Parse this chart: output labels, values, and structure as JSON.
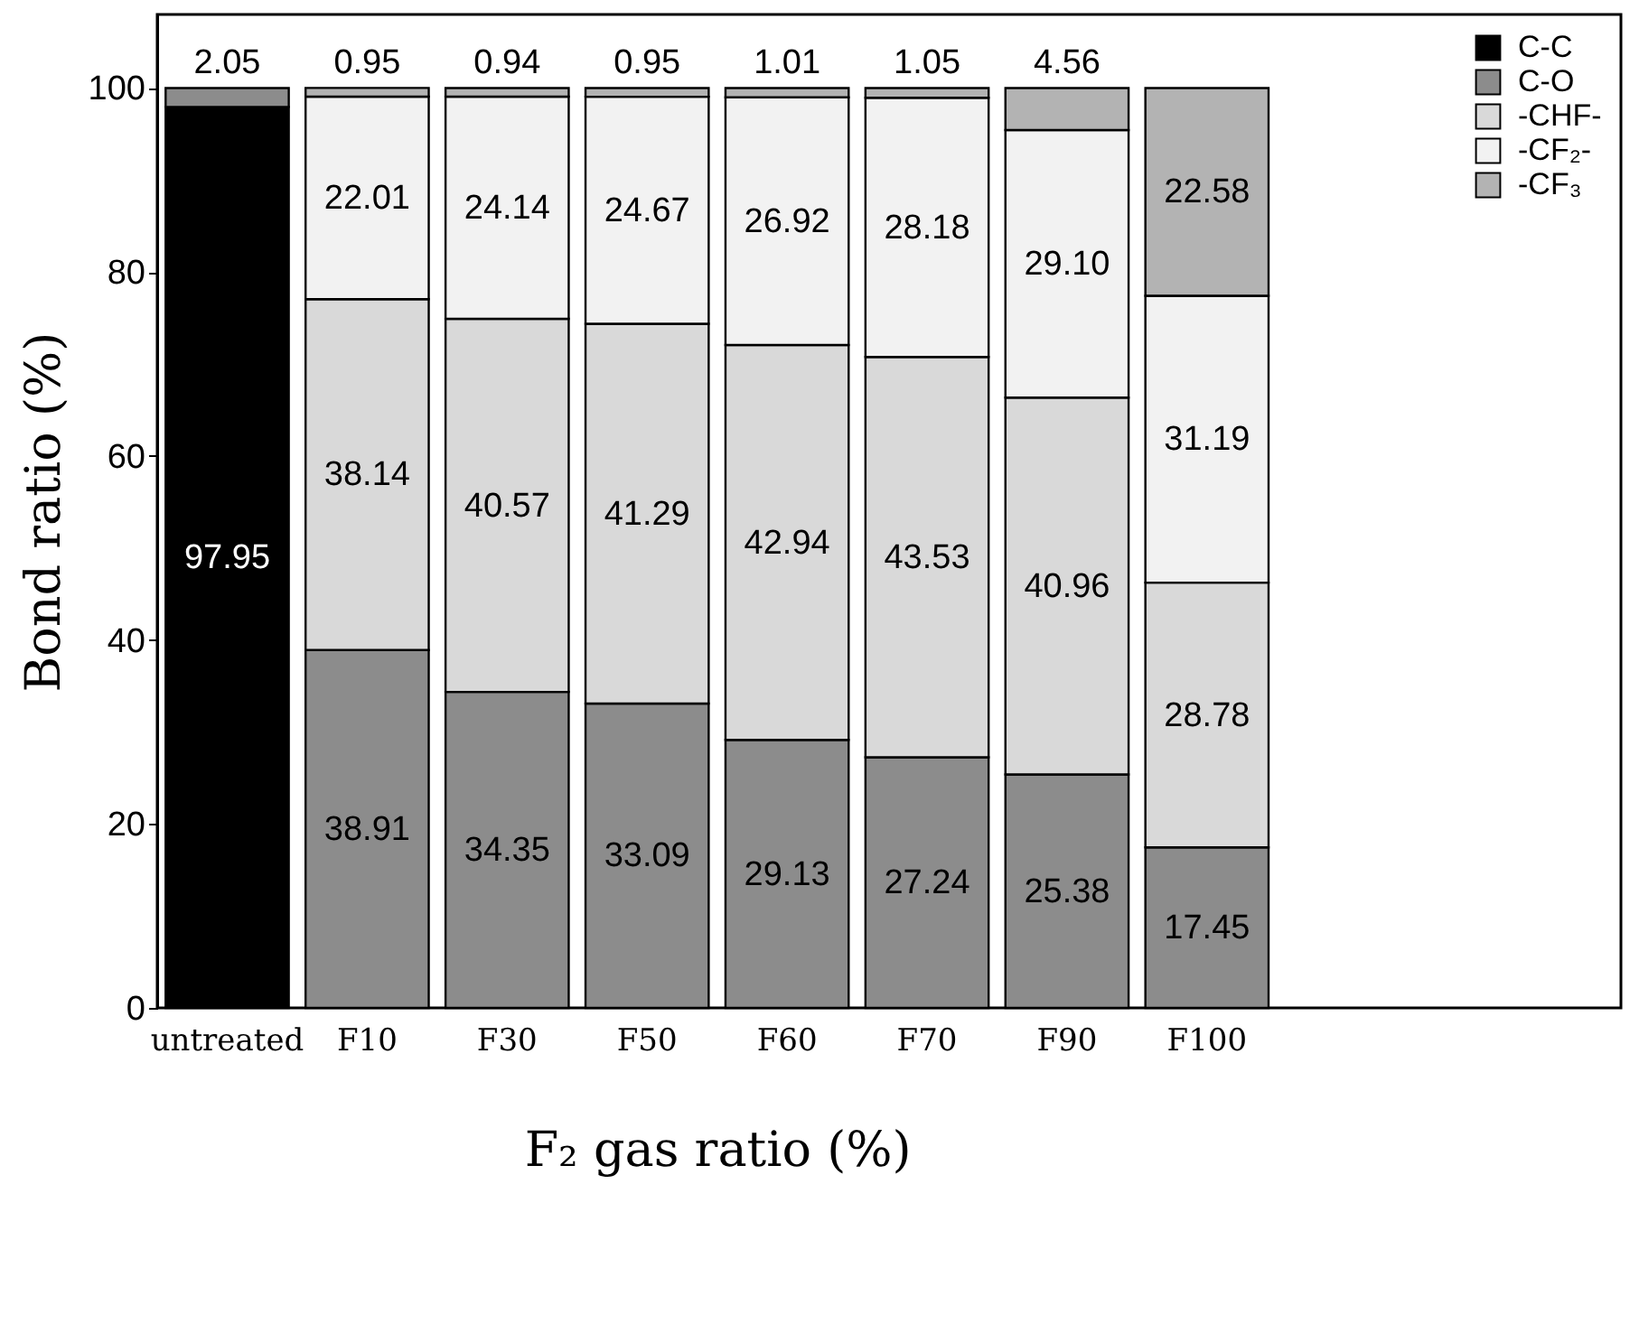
{
  "chart_data": {
    "type": "bar",
    "stacked": true,
    "xlabel": "F₂ gas ratio (%)",
    "ylabel": "Bond ratio (%)",
    "categories": [
      "untreated",
      "F10",
      "F30",
      "F50",
      "F60",
      "F70",
      "F90",
      "F100"
    ],
    "series": [
      {
        "name": "C-C",
        "color": "#000000",
        "values": [
          97.95,
          null,
          null,
          null,
          null,
          null,
          null,
          null
        ],
        "value_labels": [
          "97.95",
          null,
          null,
          null,
          null,
          null,
          null,
          null
        ]
      },
      {
        "name": "C-O",
        "color": "#8c8c8c",
        "values": [
          2.05,
          38.91,
          34.35,
          33.09,
          29.13,
          27.24,
          25.38,
          17.45
        ],
        "value_labels": [
          "2.05",
          "38.91",
          "34.35",
          "33.09",
          "29.13",
          "27.24",
          "25.38",
          "17.45"
        ]
      },
      {
        "name": "-CHF-",
        "color": "#d9d9d9",
        "values": [
          null,
          38.14,
          40.57,
          41.29,
          42.94,
          43.53,
          40.96,
          28.78
        ],
        "value_labels": [
          null,
          "38.14",
          "40.57",
          "41.29",
          "42.94",
          "43.53",
          "40.96",
          "28.78"
        ]
      },
      {
        "name": "-CF₂-",
        "color": "#f2f2f2",
        "values": [
          null,
          22.01,
          24.14,
          24.67,
          26.92,
          28.18,
          29.1,
          31.19
        ],
        "value_labels": [
          null,
          "22.01",
          "24.14",
          "24.67",
          "26.92",
          "28.18",
          "29.10",
          "31.19"
        ]
      },
      {
        "name": "-CF₃",
        "color": "#b3b3b3",
        "values": [
          null,
          0.95,
          0.94,
          0.95,
          1.01,
          1.05,
          4.56,
          22.58
        ],
        "value_labels": [
          null,
          "0.95",
          "0.94",
          "0.95",
          "1.01",
          "1.05",
          "4.56",
          "22.58"
        ]
      }
    ],
    "ylim": [
      0,
      108
    ],
    "yticks": [
      0,
      20,
      40,
      60,
      80,
      100
    ],
    "grid": false,
    "legend": "top right"
  }
}
